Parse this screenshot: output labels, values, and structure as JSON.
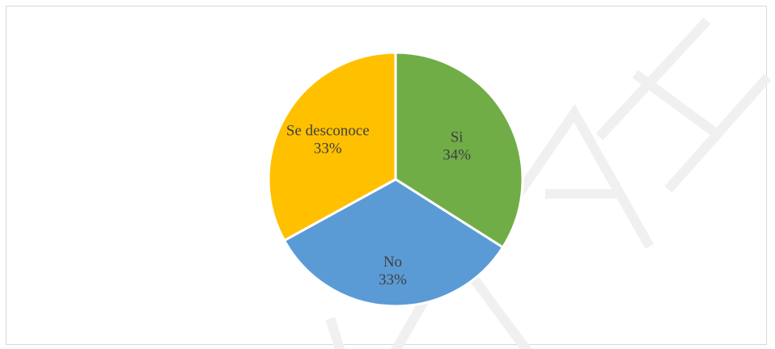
{
  "chart_data": {
    "type": "pie",
    "slices": [
      {
        "label": "Si",
        "value": 34,
        "percent_label": "34%",
        "color": "#70ad47"
      },
      {
        "label": "No",
        "value": 33,
        "percent_label": "33%",
        "color": "#5b9bd5"
      },
      {
        "label": "Se desconoce",
        "value": 33,
        "percent_label": "33%",
        "color": "#ffc000"
      }
    ],
    "start_angle_deg": 0,
    "direction": "clockwise",
    "legend": "none"
  },
  "watermark": {
    "text": "INAH",
    "color": "#f0f0f0"
  }
}
